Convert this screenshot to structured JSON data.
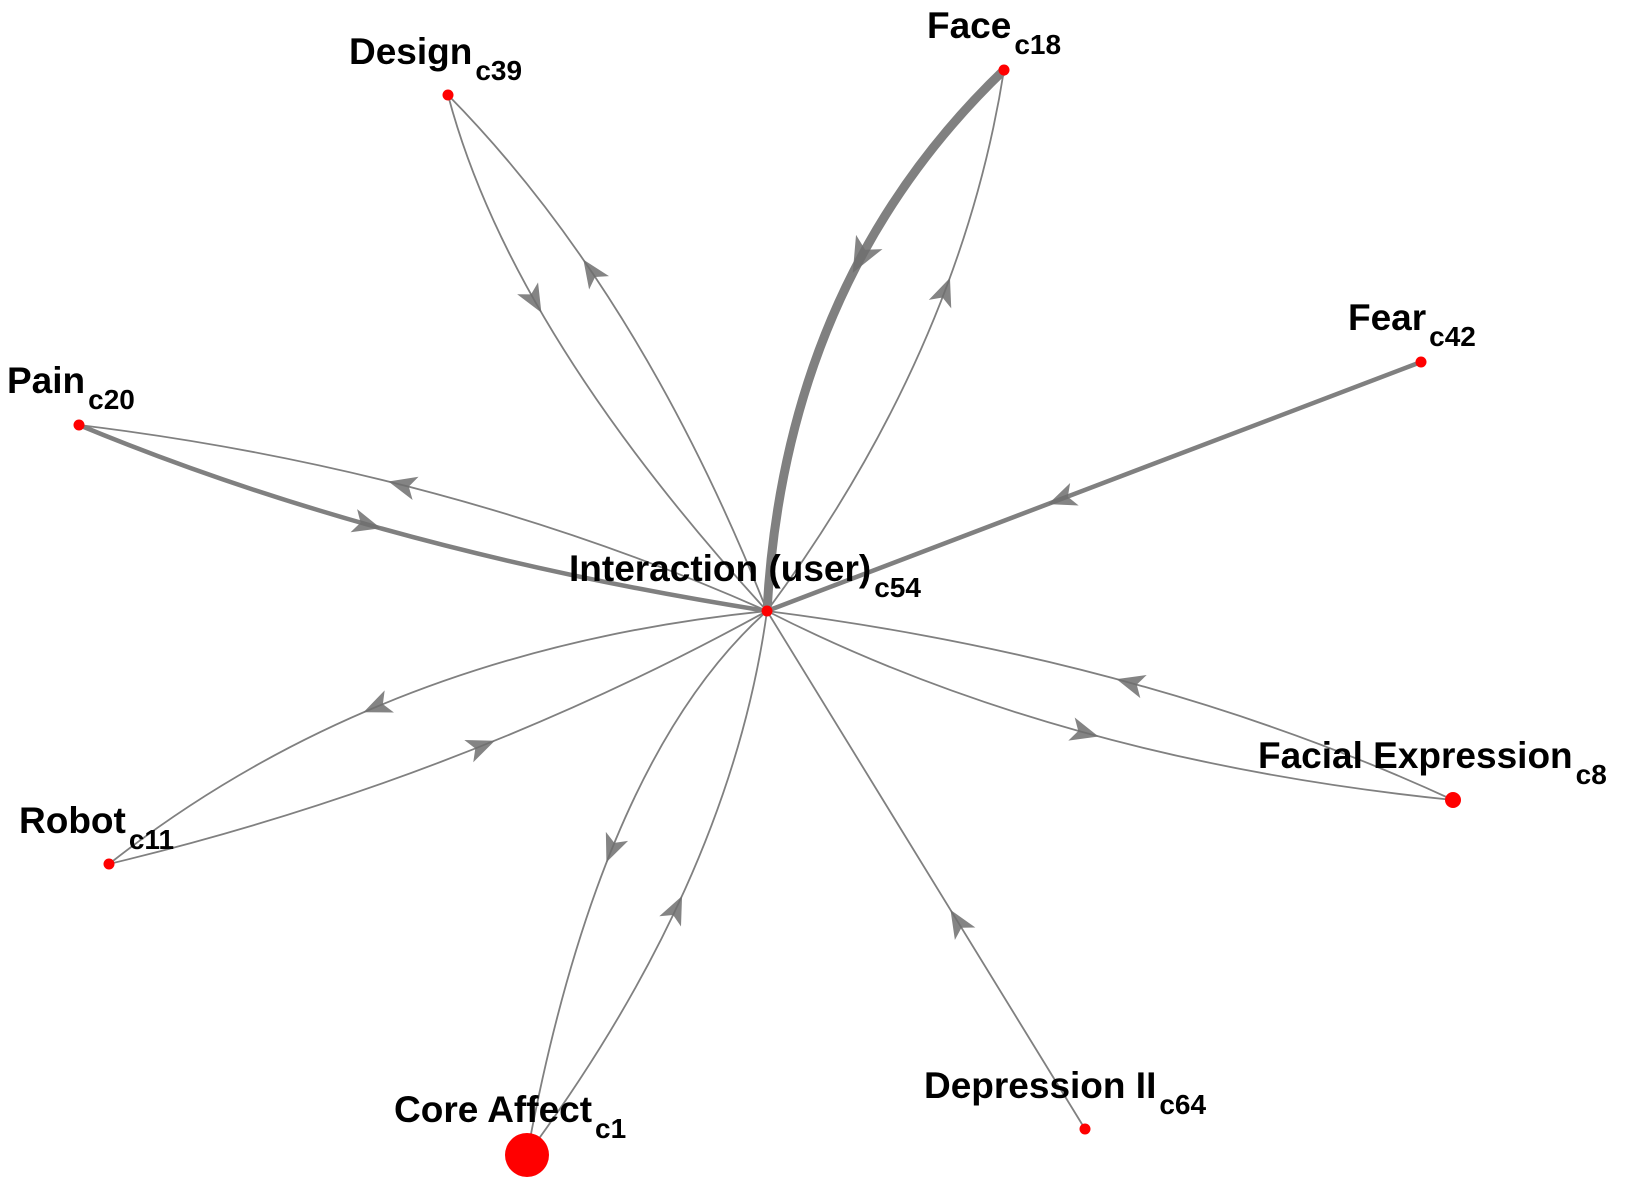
{
  "diagram": {
    "title": "",
    "colors": {
      "node": "#ff0000",
      "edge": "#808080",
      "arrow": "#6e6e6e",
      "text": "#000000"
    },
    "center_node": "c54",
    "nodes": [
      {
        "id": "c54",
        "label": "Interaction (user)",
        "sub": "c54",
        "size": "small"
      },
      {
        "id": "c18",
        "label": "Face",
        "sub": "c18",
        "size": "small"
      },
      {
        "id": "c39",
        "label": "Design",
        "sub": "c39",
        "size": "small"
      },
      {
        "id": "c42",
        "label": "Fear",
        "sub": "c42",
        "size": "small"
      },
      {
        "id": "c20",
        "label": "Pain",
        "sub": "c20",
        "size": "small"
      },
      {
        "id": "c8",
        "label": "Facial Expression",
        "sub": "c8",
        "size": "medium"
      },
      {
        "id": "c11",
        "label": "Robot",
        "sub": "c11",
        "size": "small"
      },
      {
        "id": "c64",
        "label": "Depression II",
        "sub": "c64",
        "size": "small"
      },
      {
        "id": "c1",
        "label": "Core Affect",
        "sub": "c1",
        "size": "large"
      }
    ],
    "edges": [
      {
        "from": "c18",
        "to": "c54",
        "weight": "heavy"
      },
      {
        "from": "c54",
        "to": "c18",
        "weight": "light"
      },
      {
        "from": "c39",
        "to": "c54",
        "weight": "light"
      },
      {
        "from": "c54",
        "to": "c39",
        "weight": "light"
      },
      {
        "from": "c42",
        "to": "c54",
        "weight": "medium"
      },
      {
        "from": "c20",
        "to": "c54",
        "weight": "medium"
      },
      {
        "from": "c54",
        "to": "c20",
        "weight": "light"
      },
      {
        "from": "c8",
        "to": "c54",
        "weight": "light"
      },
      {
        "from": "c54",
        "to": "c8",
        "weight": "light"
      },
      {
        "from": "c54",
        "to": "c11",
        "weight": "light"
      },
      {
        "from": "c11",
        "to": "c54",
        "weight": "light"
      },
      {
        "from": "c64",
        "to": "c54",
        "weight": "light"
      },
      {
        "from": "c54",
        "to": "c1",
        "weight": "light"
      },
      {
        "from": "c1",
        "to": "c54",
        "weight": "light"
      }
    ]
  }
}
